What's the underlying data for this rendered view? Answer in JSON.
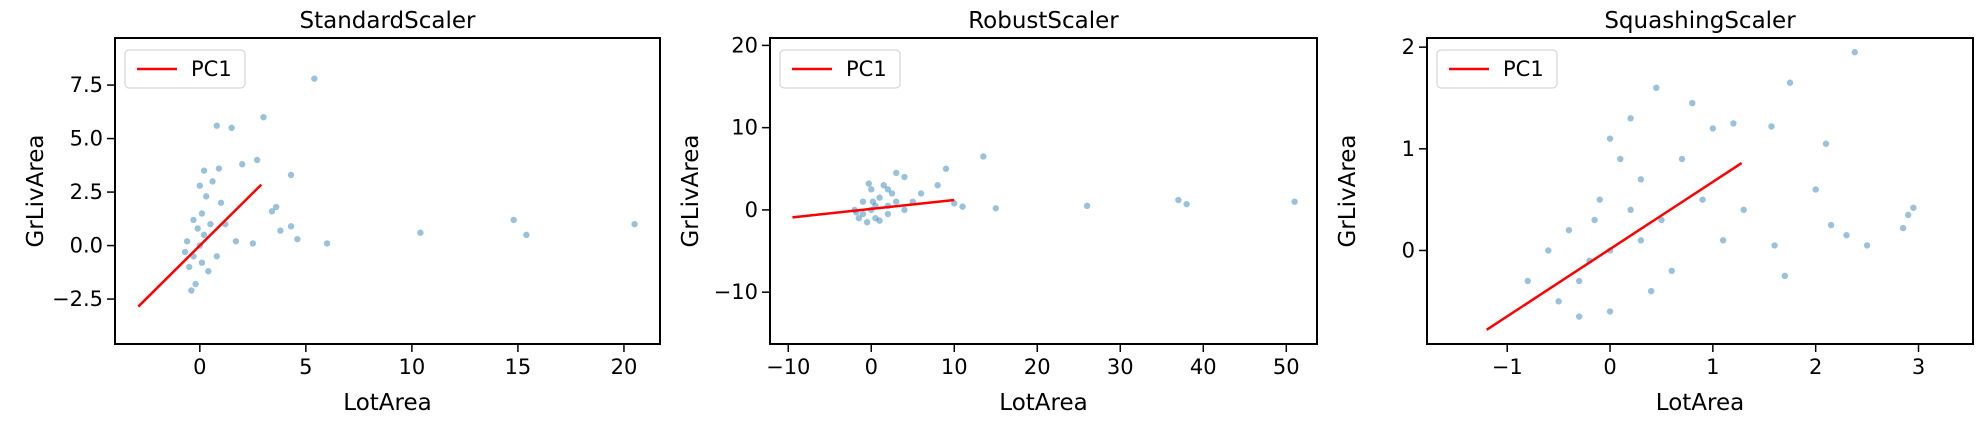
{
  "chart_data": [
    {
      "type": "scatter",
      "title": "StandardScaler",
      "x_label": "LotArea",
      "y_label": "GrLivArea",
      "legend": "upper left",
      "xlim": [
        -4.0,
        21.7
      ],
      "ylim": [
        -4.6,
        9.7
      ],
      "xticks": [
        0,
        5,
        10,
        15,
        20
      ],
      "yticks": [
        {
          "value": -2.5,
          "label": "−2.5"
        },
        {
          "value": 0,
          "label": "0.0"
        },
        2.5,
        {
          "value": 5,
          "label": "5.0"
        },
        7.5
      ],
      "points": {
        "color": "#1f77b4",
        "x": [
          5.4,
          20.5,
          15.4,
          14.8,
          10.4,
          6.0,
          4.3,
          4.3,
          4.6,
          3.0,
          2.7,
          1.5,
          0.8,
          3.8,
          3.6,
          3.4,
          2.5,
          1.7,
          2.0,
          0,
          -0.3,
          0.2,
          -0.5,
          0.1,
          0.3,
          -0.2,
          0.5,
          -0.6,
          0.8,
          1.0,
          -0.4,
          0.2,
          0.6,
          -0.1,
          0.4,
          1.2,
          -0.7,
          0.0,
          0.9,
          0.1,
          -0.3
        ],
        "y": [
          7.8,
          1.0,
          0.5,
          1.2,
          0.6,
          0.1,
          3.3,
          0.9,
          0.3,
          6.0,
          4.0,
          5.5,
          5.6,
          0.7,
          1.8,
          1.6,
          0.1,
          0.2,
          3.8,
          0,
          -0.5,
          0.5,
          -1.0,
          1.5,
          2.3,
          -1.8,
          1.0,
          0.2,
          -0.5,
          2.0,
          -2.1,
          3.5,
          3.0,
          0.8,
          -1.2,
          1.0,
          -0.3,
          2.8,
          3.6,
          -0.8,
          1.2
        ]
      },
      "lines": [
        {
          "name": "PC1",
          "color": "#ff0000",
          "x": [
            -2.9,
            2.9
          ],
          "y": [
            -2.85,
            2.85
          ]
        }
      ]
    },
    {
      "type": "scatter",
      "title": "RobustScaler",
      "x_label": "LotArea",
      "y_label": "GrLivArea",
      "legend": "upper left",
      "xlim": [
        -12.2,
        53.7
      ],
      "ylim": [
        -16.3,
        20.9
      ],
      "xticks": [
        {
          "value": -10,
          "label": "−10"
        },
        0,
        10,
        20,
        30,
        40,
        50
      ],
      "yticks": [
        {
          "value": -10,
          "label": "−10"
        },
        0,
        10,
        20
      ],
      "points": {
        "color": "#1f77b4",
        "x": [
          51,
          38,
          37,
          26,
          15,
          13.5,
          11,
          10,
          9,
          8,
          6,
          5,
          4,
          3,
          2,
          0,
          -1,
          0.5,
          -1.5,
          1,
          -2,
          2,
          0,
          -0.5,
          1.5,
          3,
          -1,
          0.5,
          2.5,
          -1.8,
          0.2,
          4,
          1,
          -0.3,
          2
        ],
        "y": [
          1.0,
          0.7,
          1.2,
          0.5,
          0.2,
          6.5,
          0.4,
          0.8,
          5.0,
          3.0,
          2.0,
          1.0,
          4.0,
          4.5,
          2.5,
          0,
          -0.5,
          0.5,
          -1.0,
          1.5,
          0,
          -0.5,
          2.5,
          -1.5,
          3,
          1,
          1,
          -1,
          2,
          -0.3,
          1.0,
          0,
          -1.3,
          3.2,
          0.5
        ]
      },
      "lines": [
        {
          "name": "PC1",
          "color": "#ff0000",
          "x": [
            -9.5,
            10
          ],
          "y": [
            -0.9,
            1.2
          ]
        }
      ]
    },
    {
      "type": "scatter",
      "title": "SquashingScaler",
      "x_label": "LotArea",
      "y_label": "GrLivArea",
      "legend": "upper left",
      "xlim": [
        -1.78,
        3.53
      ],
      "ylim": [
        -0.92,
        2.09
      ],
      "xticks": [
        {
          "value": -1,
          "label": "−1"
        },
        0,
        1,
        2,
        3
      ],
      "yticks": [
        0,
        1,
        2
      ],
      "points": {
        "color": "#1f77b4",
        "x": [
          2.38,
          1.75,
          1.57,
          1.2,
          2.1,
          2.95,
          2.9,
          2.85,
          2.0,
          2.15,
          2.3,
          1.6,
          1.7,
          2.5,
          0.45,
          0.8,
          1.0,
          1.3,
          1.1,
          0,
          -0.3,
          0.2,
          -0.5,
          0.1,
          0.3,
          -0.2,
          0.5,
          -0.8,
          0.6,
          -0.4,
          0.0,
          0.2,
          -0.1,
          0.7,
          -0.6,
          0.4,
          0.0,
          -0.3,
          0.9,
          -0.15,
          0.3
        ],
        "y": [
          1.95,
          1.65,
          1.22,
          1.25,
          1.05,
          0.42,
          0.35,
          0.22,
          0.6,
          0.25,
          0.15,
          0.05,
          -0.25,
          0.05,
          1.6,
          1.45,
          1.2,
          0.4,
          0.1,
          0,
          -0.3,
          0.4,
          -0.5,
          0.9,
          0.7,
          -0.1,
          0.3,
          -0.3,
          -0.2,
          0.2,
          -0.6,
          1.3,
          0.5,
          0.9,
          0.0,
          -0.4,
          1.1,
          -0.65,
          0.5,
          0.3,
          0.1
        ]
      },
      "lines": [
        {
          "name": "PC1",
          "color": "#ff0000",
          "x": [
            -1.2,
            1.28
          ],
          "y": [
            -0.78,
            0.86
          ]
        }
      ]
    }
  ]
}
